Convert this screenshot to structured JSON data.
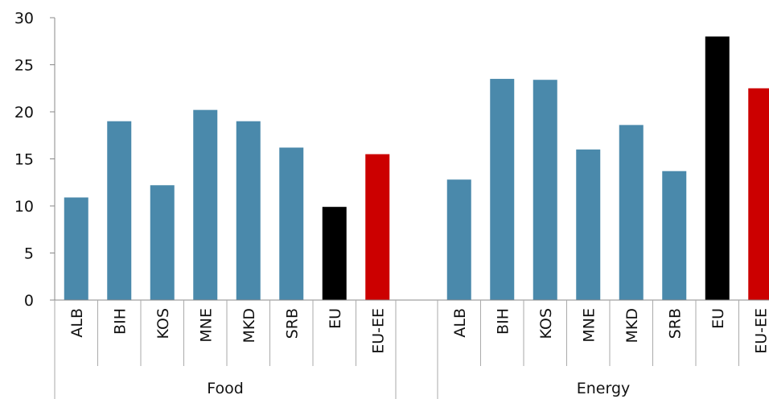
{
  "chart_data": {
    "type": "bar",
    "title": "",
    "xlabel": "",
    "ylabel": "",
    "ylim": [
      0,
      30
    ],
    "yticks": [
      0,
      5,
      10,
      15,
      20,
      25,
      30
    ],
    "grid": false,
    "legend": "none",
    "colors": {
      "default": "#4a89ab",
      "EU": "#000000",
      "EU-EE": "#cc0000"
    },
    "groups": [
      {
        "name": "Food",
        "categories": [
          "ALB",
          "BIH",
          "KOS",
          "MNE",
          "MKD",
          "SRB",
          "EU",
          "EU-EE"
        ],
        "values": [
          10.9,
          19.0,
          12.2,
          20.2,
          19.0,
          16.2,
          9.9,
          15.5
        ]
      },
      {
        "name": "Energy",
        "categories": [
          "ALB",
          "BIH",
          "KOS",
          "MNE",
          "MKD",
          "SRB",
          "EU",
          "EU-EE"
        ],
        "values": [
          12.8,
          23.5,
          23.4,
          16.0,
          18.6,
          13.7,
          28.0,
          22.5
        ]
      }
    ]
  }
}
